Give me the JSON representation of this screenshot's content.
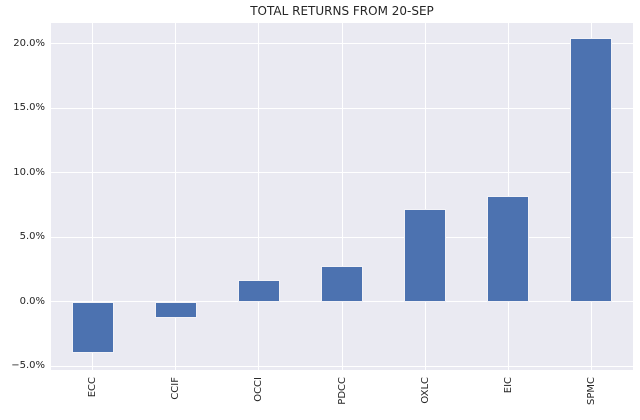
{
  "chart_data": {
    "type": "bar",
    "title": "TOTAL RETURNS FROM 20-SEP",
    "categories": [
      "ECC",
      "CCIF",
      "OCCI",
      "PDCC",
      "OXLC",
      "EIC",
      "SPMC"
    ],
    "values": [
      -4.0,
      -1.3,
      1.7,
      2.8,
      7.2,
      8.2,
      20.4
    ],
    "xlabel": "",
    "ylabel": "",
    "ylim": [
      -5.3,
      21.6
    ],
    "yticks": [
      {
        "value": -5,
        "label": "−5.0%"
      },
      {
        "value": 0,
        "label": "0.0%"
      },
      {
        "value": 5,
        "label": "5.0%"
      },
      {
        "value": 10,
        "label": "10.0%"
      },
      {
        "value": 15,
        "label": "15.0%"
      },
      {
        "value": 20,
        "label": "20.0%"
      }
    ],
    "grid": true,
    "legend": false,
    "colors": {
      "bar_fill": "#4C72B0",
      "bar_edge": "#F2F2F7",
      "plot_background": "#EAEAF2",
      "gridline": "#FFFFFF",
      "text": "#262626",
      "figure_background": "#FFFFFF"
    }
  }
}
